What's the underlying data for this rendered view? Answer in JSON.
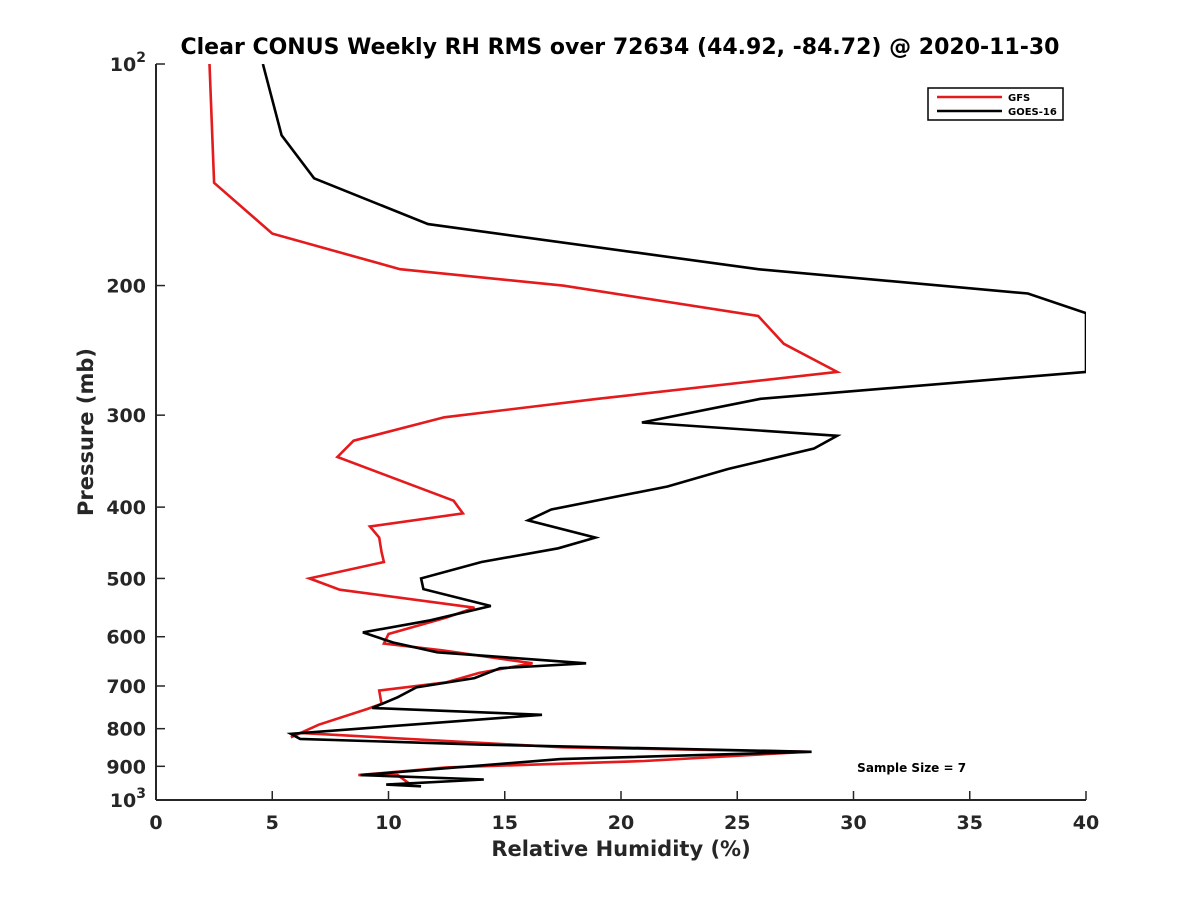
{
  "chart_data": {
    "type": "line",
    "title": "Clear CONUS Weekly RH RMS over 72634 (44.92, -84.72) @ 2020-11-30",
    "xlabel": "Relative Humidity (%)",
    "ylabel": "Pressure (mb)",
    "xlim": [
      0,
      40
    ],
    "ylim": [
      100,
      1000
    ],
    "yscale": "log",
    "y_reversed": true,
    "grid": false,
    "x_ticks": [
      0,
      5,
      10,
      15,
      20,
      25,
      30,
      35,
      40
    ],
    "y_ticks": [
      {
        "value": 100,
        "label": "10",
        "exp": "2"
      },
      {
        "value": 200,
        "label": "200"
      },
      {
        "value": 300,
        "label": "300"
      },
      {
        "value": 400,
        "label": "400"
      },
      {
        "value": 500,
        "label": "500"
      },
      {
        "value": 600,
        "label": "600"
      },
      {
        "value": 700,
        "label": "700"
      },
      {
        "value": 800,
        "label": "800"
      },
      {
        "value": 900,
        "label": "900"
      },
      {
        "value": 1000,
        "label": "10",
        "exp": "3"
      }
    ],
    "legend_position": "top-right",
    "series": [
      {
        "name": "GFS",
        "color": "#e41a1c",
        "x": [
          2.3,
          2.5,
          5.0,
          10.5,
          17.5,
          25.9,
          27.0,
          29.3,
          19.0,
          12.4,
          8.5,
          7.8,
          12.8,
          13.2,
          9.2,
          9.6,
          9.7,
          9.8,
          6.6,
          7.9,
          13.7,
          12.5,
          10.0,
          9.8,
          12.3,
          16.2,
          13.9,
          12.5,
          9.6,
          9.7,
          9.1,
          7.0,
          5.8,
          6.2,
          17.5,
          28.0,
          21.0,
          12.5,
          8.7,
          10.4,
          11.0
        ],
        "y": [
          100,
          145,
          170,
          190,
          200,
          220,
          240,
          262,
          285,
          302,
          325,
          342,
          392,
          408,
          425,
          440,
          460,
          475,
          500,
          518,
          548,
          565,
          595,
          613,
          626,
          652,
          672,
          692,
          710,
          740,
          752,
          790,
          822,
          811,
          848,
          860,
          885,
          903,
          925,
          925,
          956
        ]
      },
      {
        "name": "GOES-16",
        "color": "#000000",
        "x": [
          4.6,
          5.4,
          6.8,
          11.7,
          25.9,
          37.5,
          40.0,
          40.0,
          26.0,
          20.9,
          29.3,
          28.3,
          24.6,
          22.0,
          17.0,
          16.0,
          18.9,
          17.3,
          14.0,
          11.4,
          11.5,
          14.4,
          11.8,
          8.9,
          10.2,
          12.1,
          18.5,
          14.8,
          13.7,
          11.2,
          10.4,
          9.3,
          16.6,
          5.8,
          6.2,
          13.9,
          28.2,
          17.4,
          8.8,
          14.1,
          9.9,
          11.4
        ],
        "y": [
          100,
          125,
          143,
          165,
          190,
          205,
          218,
          262,
          285,
          307,
          320,
          333,
          355,
          375,
          403,
          417,
          440,
          455,
          475,
          500,
          517,
          545,
          570,
          592,
          611,
          630,
          652,
          662,
          683,
          703,
          725,
          750,
          766,
          813,
          826,
          841,
          860,
          880,
          925,
          938,
          953,
          958
        ]
      }
    ],
    "annotations": [
      {
        "text": "Sample Size = 7",
        "x": 32.5,
        "y": 905
      }
    ]
  }
}
